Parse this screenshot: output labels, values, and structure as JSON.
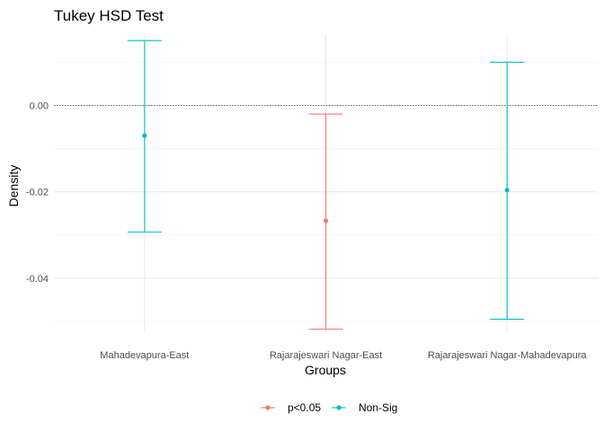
{
  "chart_data": {
    "type": "errorbar",
    "title": "Tukey HSD Test",
    "xlabel": "Groups",
    "ylabel": "Density",
    "categories": [
      "Mahadevapura-East",
      "Rajarajeswari Nagar-East",
      "Rajarajeswari Nagar-Mahadevapura"
    ],
    "y_ticks": [
      0.0,
      -0.02,
      -0.04
    ],
    "y_tick_labels": [
      "0.00",
      "-0.02",
      "-0.04"
    ],
    "ylim": [
      -0.0525,
      0.0165
    ],
    "grid": true,
    "reference_line": 0,
    "legend_position": "bottom",
    "legend": [
      {
        "label": "p<0.05",
        "color": "#F8766D"
      },
      {
        "label": "Non-Sig",
        "color": "#00BFC4"
      }
    ],
    "points": [
      {
        "category": "Mahadevapura-East",
        "estimate": -0.007,
        "lower": -0.0293,
        "upper": 0.015,
        "significance": "Non-Sig",
        "color": "#00BFC4"
      },
      {
        "category": "Rajarajeswari Nagar-East",
        "estimate": -0.0267,
        "lower": -0.0518,
        "upper": -0.002,
        "significance": "p<0.05",
        "color": "#F8766D"
      },
      {
        "category": "Rajarajeswari Nagar-Mahadevapura",
        "estimate": -0.0196,
        "lower": -0.0495,
        "upper": 0.01,
        "significance": "Non-Sig",
        "color": "#00BFC4"
      }
    ]
  }
}
